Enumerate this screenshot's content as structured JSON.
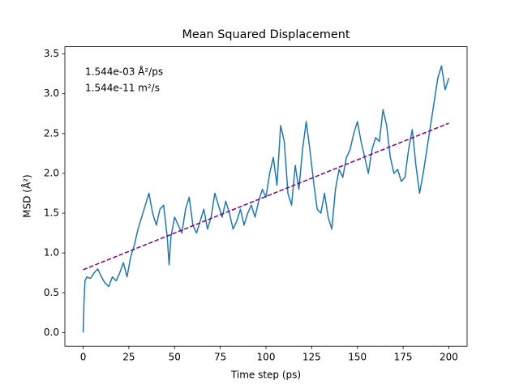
{
  "chart_data": {
    "type": "line",
    "title": "Mean Squared Displacement",
    "xlabel": "Time step (ps)",
    "ylabel": "MSD (Å²)",
    "annotations": [
      "1.544e-03 Å²/ps",
      "1.544e-11 m²/s"
    ],
    "x": [
      0,
      0.5,
      1,
      2,
      4,
      6,
      8,
      10,
      12,
      14,
      16,
      18,
      20,
      22,
      24,
      26,
      28,
      30,
      32,
      34,
      36,
      38,
      40,
      42,
      44,
      46,
      47,
      48,
      50,
      52,
      54,
      56,
      58,
      60,
      62,
      64,
      66,
      68,
      70,
      72,
      74,
      76,
      78,
      80,
      82,
      84,
      86,
      88,
      90,
      92,
      94,
      96,
      98,
      100,
      102,
      104,
      106,
      108,
      110,
      112,
      114,
      116,
      118,
      120,
      122,
      124,
      126,
      128,
      130,
      132,
      134,
      136,
      138,
      140,
      142,
      144,
      146,
      148,
      150,
      152,
      154,
      156,
      158,
      160,
      162,
      164,
      166,
      168,
      170,
      172,
      174,
      176,
      178,
      180,
      182,
      184,
      186,
      188,
      190,
      192,
      194,
      196,
      198,
      200
    ],
    "series": [
      {
        "color": "#1f77b4",
        "values": [
          0,
          0.4,
          0.65,
          0.7,
          0.68,
          0.75,
          0.8,
          0.7,
          0.62,
          0.58,
          0.7,
          0.65,
          0.75,
          0.88,
          0.7,
          0.95,
          1.1,
          1.3,
          1.45,
          1.6,
          1.75,
          1.5,
          1.35,
          1.55,
          1.6,
          1.2,
          0.85,
          1.2,
          1.45,
          1.35,
          1.25,
          1.55,
          1.7,
          1.35,
          1.25,
          1.4,
          1.55,
          1.3,
          1.45,
          1.75,
          1.6,
          1.45,
          1.65,
          1.5,
          1.3,
          1.4,
          1.55,
          1.35,
          1.5,
          1.6,
          1.45,
          1.65,
          1.8,
          1.7,
          2.0,
          2.2,
          1.85,
          2.6,
          2.4,
          1.75,
          1.6,
          2.1,
          1.8,
          2.3,
          2.65,
          2.3,
          1.9,
          1.55,
          1.5,
          1.75,
          1.45,
          1.3,
          1.8,
          2.05,
          1.95,
          2.2,
          2.3,
          2.5,
          2.65,
          2.4,
          2.2,
          2.0,
          2.3,
          2.45,
          2.4,
          2.8,
          2.6,
          2.2,
          2.0,
          2.05,
          1.9,
          1.95,
          2.3,
          2.55,
          2.1,
          1.75,
          2.0,
          2.3,
          2.6,
          2.9,
          3.2,
          3.35,
          3.05,
          3.2
        ]
      }
    ],
    "fit": {
      "x": [
        0,
        200
      ],
      "values": [
        0.79,
        2.63
      ],
      "color": "purple",
      "linestyle": "dashed"
    },
    "xlim": [
      -10,
      210
    ],
    "ylim": [
      -0.171,
      3.591
    ],
    "xticks": [
      0,
      25,
      50,
      75,
      100,
      125,
      150,
      175,
      200
    ],
    "yticks": [
      {
        "value": 0,
        "label": "0.0"
      },
      0.5,
      {
        "value": 1,
        "label": "1.0"
      },
      1.5,
      {
        "value": 2,
        "label": "2.0"
      },
      2.5,
      {
        "value": 3,
        "label": "3.0"
      },
      3.5
    ]
  }
}
